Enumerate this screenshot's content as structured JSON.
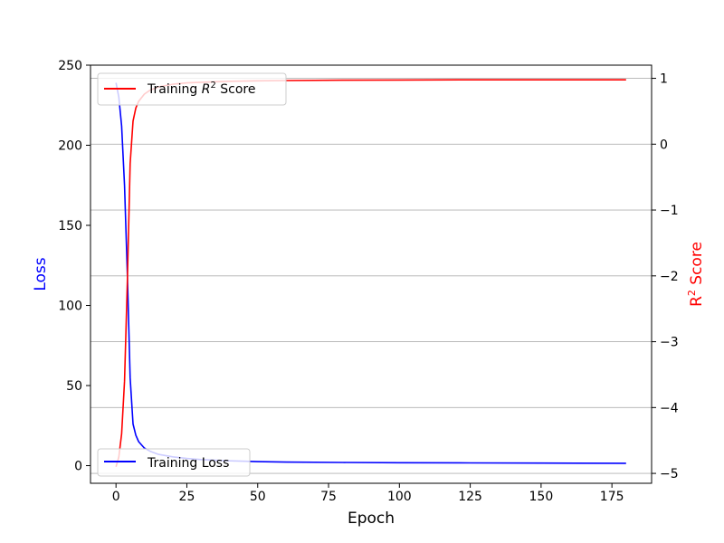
{
  "chart_data": {
    "type": "line",
    "title": "",
    "xlabel": "Epoch",
    "ylabel_left": "Loss",
    "ylabel_right_base": "R",
    "ylabel_right_sup": "2",
    "ylabel_right_rest": " Score",
    "xlim": [
      -9,
      189
    ],
    "ylim_left": [
      -11,
      250
    ],
    "ylim_right": [
      -5.15,
      1.2
    ],
    "x_ticks": [
      0,
      25,
      50,
      75,
      100,
      125,
      150,
      175
    ],
    "y_left_ticks": [
      0,
      50,
      100,
      150,
      200,
      250
    ],
    "y_right_ticks": [
      1,
      0,
      -1,
      -2,
      -3,
      -4,
      -5
    ],
    "y_right_tick_labels": [
      "1",
      "0",
      "−1",
      "−2",
      "−3",
      "−4",
      "−5"
    ],
    "grid": "horizontal lines at right-axis ticks",
    "colors": {
      "loss": "#0000ff",
      "r2": "#ff0000",
      "left_label": "#0000ff",
      "right_label": "#ff0000",
      "grid": "#b0b0b0"
    },
    "series": [
      {
        "name": "Training Loss",
        "axis": "left",
        "x": [
          0,
          1,
          2,
          3,
          4,
          5,
          6,
          7,
          8,
          10,
          12,
          15,
          20,
          25,
          30,
          40,
          50,
          60,
          80,
          100,
          125,
          150,
          180
        ],
        "y": [
          239,
          230,
          212,
          175,
          120,
          55,
          26,
          19,
          15,
          11,
          9,
          7,
          5.5,
          4.5,
          3.8,
          3.0,
          2.5,
          2.2,
          2.0,
          1.8,
          1.7,
          1.6,
          1.5
        ]
      },
      {
        "name": "Training R² Score",
        "axis": "right",
        "x": [
          0,
          1,
          2,
          3,
          4,
          5,
          6,
          7,
          8,
          10,
          12,
          15,
          20,
          25,
          30,
          40,
          50,
          60,
          80,
          100,
          125,
          150,
          180
        ],
        "y": [
          -4.9,
          -4.75,
          -4.4,
          -3.6,
          -2.1,
          -0.3,
          0.35,
          0.55,
          0.65,
          0.76,
          0.82,
          0.87,
          0.91,
          0.93,
          0.94,
          0.955,
          0.962,
          0.967,
          0.972,
          0.975,
          0.977,
          0.978,
          0.978
        ]
      }
    ],
    "legends": [
      {
        "series": "r2",
        "placement": "top-left",
        "label_prefix": "Training ",
        "label_base": "R",
        "label_sup": "2",
        "label_suffix": " Score"
      },
      {
        "series": "loss",
        "placement": "bottom-left",
        "label": "Training Loss"
      }
    ]
  }
}
